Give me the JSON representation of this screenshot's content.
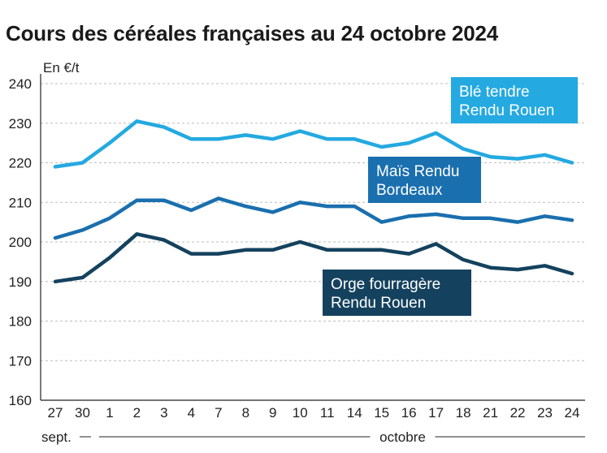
{
  "title": "Cours des céréales françaises au 24 octobre 2024",
  "chart_data": {
    "type": "line",
    "title": "Cours des céréales françaises au 24 octobre 2024",
    "unit_label": "En €/t",
    "xlabel": "",
    "ylabel": "",
    "ylim": [
      160,
      240
    ],
    "y_ticks": [
      160,
      170,
      180,
      190,
      200,
      210,
      220,
      230,
      240
    ],
    "grid": true,
    "x": [
      "27",
      "30",
      "1",
      "2",
      "3",
      "4",
      "7",
      "8",
      "9",
      "10",
      "11",
      "14",
      "15",
      "16",
      "17",
      "18",
      "21",
      "22",
      "23",
      "24"
    ],
    "month_labels": [
      {
        "label": "sept.",
        "from": 0,
        "to": 1
      },
      {
        "label": "octobre",
        "from": 2,
        "to": 19
      }
    ],
    "series": [
      {
        "name": "Blé tendre Rendu Rouen",
        "label_lines": [
          "Blé tendre",
          "Rendu Rouen"
        ],
        "color": "#24a9e1",
        "values": [
          219,
          220,
          225,
          230.5,
          229,
          226,
          226,
          227,
          226,
          228,
          226,
          226,
          224,
          225,
          227.5,
          223.5,
          221.5,
          221,
          222,
          220
        ]
      },
      {
        "name": "Maïs Rendu Bordeaux",
        "label_lines": [
          "Maïs Rendu",
          "Bordeaux"
        ],
        "color": "#1a6fae",
        "values": [
          201,
          203,
          206,
          210.5,
          210.5,
          208,
          211,
          209,
          207.5,
          210,
          209,
          209,
          205,
          206.5,
          207,
          206,
          206,
          205,
          206.5,
          205.5
        ]
      },
      {
        "name": "Orge fourragère Rendu Rouen",
        "label_lines": [
          "Orge fourragère",
          "Rendu Rouen"
        ],
        "color": "#14425e",
        "values": [
          190,
          191,
          196,
          202,
          200.5,
          197,
          197,
          198,
          198,
          200,
          198,
          198,
          198,
          197,
          199.5,
          195.5,
          193.5,
          193,
          194,
          192
        ]
      }
    ]
  }
}
